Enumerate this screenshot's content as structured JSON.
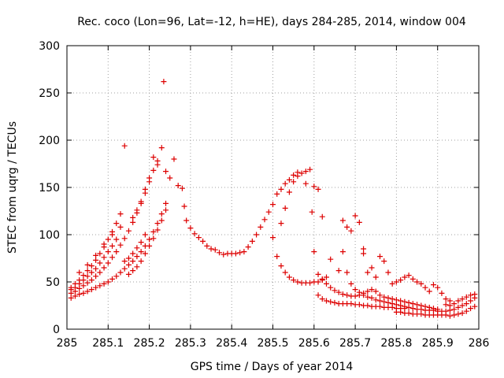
{
  "chart_data": {
    "type": "scatter",
    "title": "Rec. coco (Lon=96, Lat=-12, h=HE), days 284-285, 2014, window 004",
    "xlabel": "GPS time / Days of year 2014",
    "ylabel": "STEC from uqrg / TECUs",
    "xlim": [
      285,
      286
    ],
    "ylim": [
      0,
      300
    ],
    "xticks": [
      "285",
      "285.1",
      "285.2",
      "285.3",
      "285.4",
      "285.5",
      "285.6",
      "285.7",
      "285.8",
      "285.9",
      "286"
    ],
    "yticks": [
      "0",
      "50",
      "100",
      "150",
      "200",
      "250",
      "300"
    ],
    "grid": true,
    "marker": "+",
    "color": "#dd0000",
    "points": [
      [
        285.01,
        33
      ],
      [
        285.02,
        35
      ],
      [
        285.03,
        37
      ],
      [
        285.04,
        38
      ],
      [
        285.05,
        40
      ],
      [
        285.06,
        42
      ],
      [
        285.07,
        44
      ],
      [
        285.08,
        46
      ],
      [
        285.09,
        48
      ],
      [
        285.1,
        50
      ],
      [
        285.11,
        53
      ],
      [
        285.12,
        56
      ],
      [
        285.13,
        60
      ],
      [
        285.14,
        64
      ],
      [
        285.15,
        68
      ],
      [
        285.16,
        72
      ],
      [
        285.17,
        77
      ],
      [
        285.18,
        82
      ],
      [
        285.19,
        88
      ],
      [
        285.2,
        95
      ],
      [
        285.21,
        103
      ],
      [
        285.22,
        112
      ],
      [
        285.23,
        122
      ],
      [
        285.24,
        133
      ],
      [
        285.01,
        38
      ],
      [
        285.02,
        40
      ],
      [
        285.03,
        43
      ],
      [
        285.04,
        46
      ],
      [
        285.05,
        49
      ],
      [
        285.06,
        52
      ],
      [
        285.07,
        56
      ],
      [
        285.08,
        60
      ],
      [
        285.09,
        65
      ],
      [
        285.1,
        70
      ],
      [
        285.11,
        76
      ],
      [
        285.12,
        82
      ],
      [
        285.13,
        89
      ],
      [
        285.14,
        96
      ],
      [
        285.15,
        104
      ],
      [
        285.16,
        113
      ],
      [
        285.17,
        123
      ],
      [
        285.18,
        133
      ],
      [
        285.19,
        144
      ],
      [
        285.2,
        156
      ],
      [
        285.21,
        168
      ],
      [
        285.22,
        178
      ],
      [
        285.01,
        44
      ],
      [
        285.02,
        48
      ],
      [
        285.03,
        52
      ],
      [
        285.04,
        57
      ],
      [
        285.05,
        62
      ],
      [
        285.06,
        67
      ],
      [
        285.07,
        73
      ],
      [
        285.08,
        80
      ],
      [
        285.09,
        87
      ],
      [
        285.1,
        95
      ],
      [
        285.11,
        103
      ],
      [
        285.12,
        112
      ],
      [
        285.13,
        122
      ],
      [
        285.01,
        42
      ],
      [
        285.02,
        44
      ],
      [
        285.03,
        48
      ],
      [
        285.04,
        52
      ],
      [
        285.05,
        56
      ],
      [
        285.06,
        60
      ],
      [
        285.07,
        64
      ],
      [
        285.08,
        70
      ],
      [
        285.09,
        76
      ],
      [
        285.1,
        82
      ],
      [
        285.11,
        88
      ],
      [
        285.12,
        95
      ],
      [
        285.03,
        60
      ],
      [
        285.05,
        68
      ],
      [
        285.07,
        78
      ],
      [
        285.09,
        90
      ],
      [
        285.11,
        100
      ],
      [
        285.13,
        108
      ],
      [
        285.14,
        194
      ],
      [
        285.16,
        118
      ],
      [
        285.17,
        126
      ],
      [
        285.18,
        135
      ],
      [
        285.19,
        148
      ],
      [
        285.2,
        160
      ],
      [
        285.21,
        182
      ],
      [
        285.22,
        174
      ],
      [
        285.23,
        192
      ],
      [
        285.235,
        262
      ],
      [
        285.24,
        167
      ],
      [
        285.25,
        160
      ],
      [
        285.26,
        180
      ],
      [
        285.27,
        152
      ],
      [
        285.28,
        149
      ],
      [
        285.285,
        130
      ],
      [
        285.15,
        58
      ],
      [
        285.16,
        62
      ],
      [
        285.17,
        66
      ],
      [
        285.18,
        72
      ],
      [
        285.19,
        80
      ],
      [
        285.2,
        88
      ],
      [
        285.21,
        96
      ],
      [
        285.22,
        105
      ],
      [
        285.23,
        115
      ],
      [
        285.24,
        126
      ],
      [
        285.14,
        72
      ],
      [
        285.15,
        75
      ],
      [
        285.16,
        80
      ],
      [
        285.17,
        86
      ],
      [
        285.18,
        92
      ],
      [
        285.19,
        100
      ],
      [
        285.29,
        115
      ],
      [
        285.3,
        107
      ],
      [
        285.31,
        101
      ],
      [
        285.32,
        97
      ],
      [
        285.33,
        93
      ],
      [
        285.34,
        88
      ],
      [
        285.35,
        85
      ],
      [
        285.36,
        84
      ],
      [
        285.37,
        81
      ],
      [
        285.38,
        79
      ],
      [
        285.39,
        80
      ],
      [
        285.4,
        80
      ],
      [
        285.41,
        80
      ],
      [
        285.42,
        81
      ],
      [
        285.43,
        82
      ],
      [
        285.44,
        87
      ],
      [
        285.45,
        93
      ],
      [
        285.46,
        100
      ],
      [
        285.47,
        108
      ],
      [
        285.48,
        116
      ],
      [
        285.49,
        124
      ],
      [
        285.5,
        132
      ],
      [
        285.51,
        143
      ],
      [
        285.52,
        148
      ],
      [
        285.53,
        154
      ],
      [
        285.54,
        158
      ],
      [
        285.55,
        163
      ],
      [
        285.56,
        166
      ],
      [
        285.57,
        165
      ],
      [
        285.58,
        167
      ],
      [
        285.59,
        169
      ],
      [
        285.6,
        151
      ],
      [
        285.61,
        148
      ],
      [
        285.5,
        97
      ],
      [
        285.51,
        77
      ],
      [
        285.52,
        67
      ],
      [
        285.53,
        60
      ],
      [
        285.54,
        55
      ],
      [
        285.55,
        52
      ],
      [
        285.56,
        50
      ],
      [
        285.57,
        49
      ],
      [
        285.58,
        49
      ],
      [
        285.59,
        49
      ],
      [
        285.6,
        50
      ],
      [
        285.61,
        50
      ],
      [
        285.62,
        52
      ],
      [
        285.63,
        55
      ],
      [
        285.52,
        112
      ],
      [
        285.53,
        128
      ],
      [
        285.54,
        145
      ],
      [
        285.55,
        156
      ],
      [
        285.56,
        162
      ],
      [
        285.58,
        154
      ],
      [
        285.595,
        124
      ],
      [
        285.6,
        82
      ],
      [
        285.61,
        58
      ],
      [
        285.62,
        53
      ],
      [
        285.63,
        48
      ],
      [
        285.64,
        44
      ],
      [
        285.65,
        41
      ],
      [
        285.66,
        39
      ],
      [
        285.67,
        37
      ],
      [
        285.68,
        36
      ],
      [
        285.69,
        35
      ],
      [
        285.7,
        35
      ],
      [
        285.71,
        36
      ],
      [
        285.72,
        38
      ],
      [
        285.73,
        40
      ],
      [
        285.74,
        42
      ],
      [
        285.61,
        36
      ],
      [
        285.62,
        32
      ],
      [
        285.63,
        30
      ],
      [
        285.64,
        29
      ],
      [
        285.65,
        28
      ],
      [
        285.66,
        27
      ],
      [
        285.67,
        27
      ],
      [
        285.68,
        27
      ],
      [
        285.69,
        27
      ],
      [
        285.7,
        26
      ],
      [
        285.71,
        26
      ],
      [
        285.72,
        25
      ],
      [
        285.73,
        25
      ],
      [
        285.74,
        24
      ],
      [
        285.75,
        24
      ],
      [
        285.76,
        24
      ],
      [
        285.77,
        23
      ],
      [
        285.78,
        23
      ],
      [
        285.79,
        23
      ],
      [
        285.8,
        22
      ],
      [
        285.81,
        22
      ],
      [
        285.82,
        22
      ],
      [
        285.62,
        119
      ],
      [
        285.64,
        74
      ],
      [
        285.66,
        62
      ],
      [
        285.67,
        115
      ],
      [
        285.68,
        108
      ],
      [
        285.69,
        104
      ],
      [
        285.7,
        120
      ],
      [
        285.71,
        113
      ],
      [
        285.72,
        85
      ],
      [
        285.72,
        80
      ],
      [
        285.67,
        82
      ],
      [
        285.68,
        60
      ],
      [
        285.69,
        48
      ],
      [
        285.7,
        42
      ],
      [
        285.71,
        39
      ],
      [
        285.72,
        36
      ],
      [
        285.73,
        34
      ],
      [
        285.74,
        33
      ],
      [
        285.75,
        31
      ],
      [
        285.76,
        30
      ],
      [
        285.77,
        29
      ],
      [
        285.78,
        28
      ],
      [
        285.79,
        27
      ],
      [
        285.8,
        26
      ],
      [
        285.81,
        25
      ],
      [
        285.82,
        24
      ],
      [
        285.83,
        23
      ],
      [
        285.84,
        22
      ],
      [
        285.73,
        60
      ],
      [
        285.74,
        65
      ],
      [
        285.75,
        55
      ],
      [
        285.76,
        77
      ],
      [
        285.77,
        72
      ],
      [
        285.78,
        60
      ],
      [
        285.79,
        48
      ],
      [
        285.8,
        50
      ],
      [
        285.81,
        52
      ],
      [
        285.82,
        55
      ],
      [
        285.83,
        57
      ],
      [
        285.84,
        53
      ],
      [
        285.85,
        50
      ],
      [
        285.86,
        48
      ],
      [
        285.87,
        44
      ],
      [
        285.88,
        40
      ],
      [
        285.89,
        47
      ],
      [
        285.9,
        44
      ],
      [
        285.91,
        38
      ],
      [
        285.92,
        32
      ],
      [
        285.93,
        30
      ],
      [
        285.75,
        40
      ],
      [
        285.76,
        36
      ],
      [
        285.77,
        34
      ],
      [
        285.78,
        33
      ],
      [
        285.79,
        32
      ],
      [
        285.8,
        31
      ],
      [
        285.81,
        30
      ],
      [
        285.82,
        29
      ],
      [
        285.83,
        28
      ],
      [
        285.84,
        27
      ],
      [
        285.85,
        26
      ],
      [
        285.86,
        25
      ],
      [
        285.87,
        24
      ],
      [
        285.88,
        23
      ],
      [
        285.89,
        22
      ],
      [
        285.9,
        21
      ],
      [
        285.8,
        18
      ],
      [
        285.81,
        18
      ],
      [
        285.82,
        17
      ],
      [
        285.83,
        17
      ],
      [
        285.84,
        16
      ],
      [
        285.85,
        16
      ],
      [
        285.86,
        16
      ],
      [
        285.87,
        15
      ],
      [
        285.88,
        15
      ],
      [
        285.89,
        15
      ],
      [
        285.9,
        15
      ],
      [
        285.91,
        15
      ],
      [
        285.92,
        15
      ],
      [
        285.93,
        14
      ],
      [
        285.94,
        15
      ],
      [
        285.95,
        16
      ],
      [
        285.96,
        17
      ],
      [
        285.97,
        19
      ],
      [
        285.98,
        22
      ],
      [
        285.99,
        24
      ],
      [
        285.85,
        21
      ],
      [
        285.86,
        21
      ],
      [
        285.87,
        20
      ],
      [
        285.88,
        20
      ],
      [
        285.89,
        20
      ],
      [
        285.9,
        19
      ],
      [
        285.91,
        19
      ],
      [
        285.92,
        19
      ],
      [
        285.93,
        20
      ],
      [
        285.94,
        21
      ],
      [
        285.95,
        23
      ],
      [
        285.96,
        25
      ],
      [
        285.97,
        27
      ],
      [
        285.98,
        30
      ],
      [
        285.99,
        33
      ],
      [
        285.92,
        26
      ],
      [
        285.93,
        25
      ],
      [
        285.94,
        27
      ],
      [
        285.95,
        30
      ],
      [
        285.96,
        32
      ],
      [
        285.97,
        34
      ],
      [
        285.98,
        36
      ],
      [
        285.99,
        37
      ]
    ]
  }
}
